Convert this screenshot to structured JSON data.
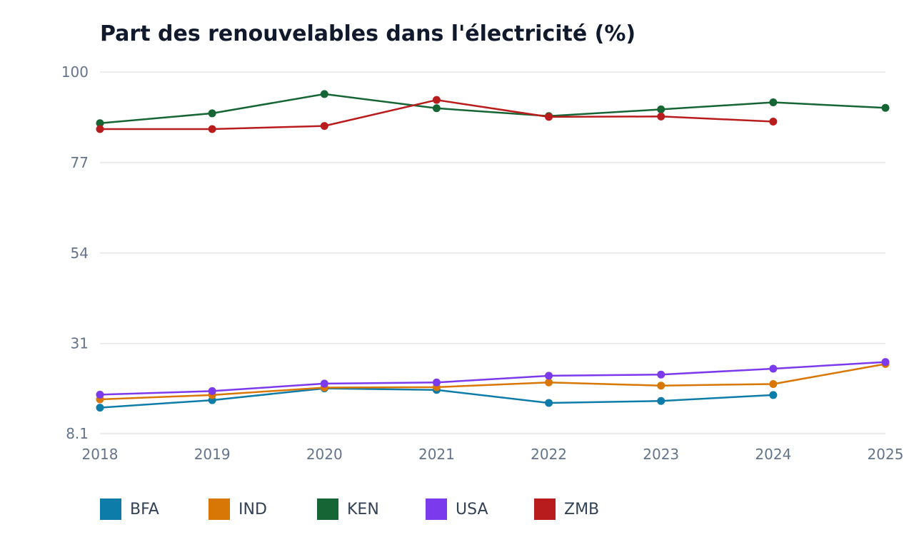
{
  "chart_data": {
    "type": "line",
    "title": "Part des renouvelables dans l'électricité (%)",
    "xlabel": "",
    "ylabel": "",
    "x": [
      "2018",
      "2019",
      "2020",
      "2021",
      "2022",
      "2023",
      "2024",
      "2025"
    ],
    "y_ticks": [
      "100",
      "77",
      "54",
      "31",
      "8.1"
    ],
    "y_tick_values": [
      100,
      77,
      54,
      31,
      8.1
    ],
    "ylim": [
      8.1,
      100
    ],
    "grid": true,
    "legend_position": "bottom-left",
    "series": [
      {
        "name": "BFA",
        "color": "#0e7ca9",
        "values": [
          14.7,
          16.6,
          19.6,
          19.2,
          15.9,
          16.4,
          17.9,
          null
        ]
      },
      {
        "name": "IND",
        "color": "#d97706",
        "values": [
          16.8,
          17.9,
          19.8,
          19.9,
          21.1,
          20.3,
          20.7,
          25.8
        ]
      },
      {
        "name": "KEN",
        "color": "#166534",
        "values": [
          87.0,
          89.5,
          94.4,
          90.8,
          88.8,
          90.5,
          92.3,
          90.9
        ]
      },
      {
        "name": "USA",
        "color": "#7c3aed",
        "values": [
          18.0,
          18.9,
          20.8,
          21.1,
          22.8,
          23.1,
          24.6,
          26.3
        ]
      },
      {
        "name": "ZMB",
        "color": "#b91c1c",
        "values": [
          85.5,
          85.5,
          86.3,
          92.9,
          88.6,
          88.7,
          87.4,
          null
        ]
      }
    ]
  }
}
